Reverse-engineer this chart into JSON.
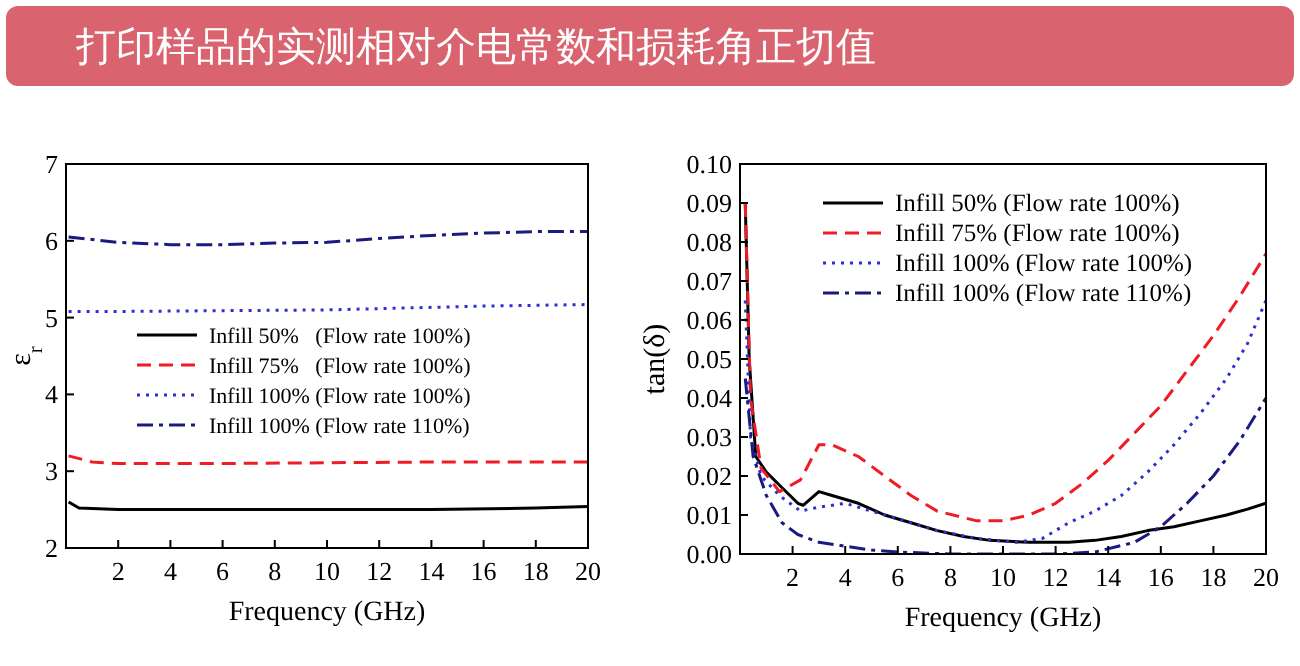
{
  "chart_data": [
    {
      "type": "line",
      "title": "打印样品的实测相对介电常数和损耗角正切值",
      "xlabel": "Frequency (GHz)",
      "ylabel": "ε$_{r}$",
      "xlim": [
        0,
        20
      ],
      "ylim": [
        2,
        7
      ],
      "xticks": [
        2,
        4,
        6,
        8,
        10,
        12,
        14,
        16,
        18,
        20
      ],
      "yticks": [
        2,
        3,
        4,
        5,
        6,
        7
      ],
      "legend": "center",
      "series": [
        {
          "name": "Infill 50%   (Flow rate 100%)",
          "color": "#000000",
          "line_style": "solid",
          "x": [
            0.1,
            0.5,
            2,
            6,
            10,
            14,
            18,
            20
          ],
          "values": [
            2.6,
            2.52,
            2.5,
            2.5,
            2.5,
            2.5,
            2.52,
            2.54
          ]
        },
        {
          "name": "Infill 75%   (Flow rate 100%)",
          "color": "#ee1c25",
          "line_style": "dashed",
          "x": [
            0.1,
            1,
            2,
            6,
            10,
            14,
            20
          ],
          "values": [
            3.2,
            3.12,
            3.1,
            3.1,
            3.11,
            3.12,
            3.12
          ]
        },
        {
          "name": "Infill 100% (Flow rate 100%)",
          "color": "#2f2fd0",
          "line_style": "dotted",
          "x": [
            0.1,
            2,
            6,
            10,
            16,
            20
          ],
          "values": [
            5.08,
            5.08,
            5.09,
            5.1,
            5.15,
            5.17
          ]
        },
        {
          "name": "Infill 100% (Flow rate 110%)",
          "color": "#1a1a80",
          "line_style": "dashdot",
          "x": [
            0.1,
            2,
            4,
            6,
            8,
            10,
            12,
            14,
            16,
            18,
            20
          ],
          "values": [
            6.05,
            5.98,
            5.95,
            5.95,
            5.97,
            5.98,
            6.03,
            6.07,
            6.1,
            6.12,
            6.12
          ]
        }
      ]
    },
    {
      "type": "line",
      "xlabel": "Frequency (GHz)",
      "ylabel": "tan(δ)",
      "xlim": [
        0,
        20
      ],
      "ylim": [
        0,
        0.1
      ],
      "xticks": [
        2,
        4,
        6,
        8,
        10,
        12,
        14,
        16,
        18,
        20
      ],
      "yticks": [
        {
          "value": 0,
          "label": "0.00"
        },
        {
          "value": 0.01,
          "label": "0.01"
        },
        {
          "value": 0.02,
          "label": "0.02"
        },
        {
          "value": 0.03,
          "label": "0.03"
        },
        {
          "value": 0.04,
          "label": "0.04"
        },
        {
          "value": 0.05,
          "label": "0.05"
        },
        {
          "value": 0.06,
          "label": "0.06"
        },
        {
          "value": 0.07,
          "label": "0.07"
        },
        {
          "value": 0.08,
          "label": "0.08"
        },
        {
          "value": 0.09,
          "label": "0.09"
        },
        {
          "value": 0.1,
          "label": "0.10"
        }
      ],
      "legend": "top",
      "series": [
        {
          "name": "Infill 50% (Flow rate 100%)",
          "color": "#000000",
          "line_style": "solid",
          "x": [
            0.2,
            0.35,
            0.6,
            1,
            1.6,
            2.2,
            2.4,
            3,
            3.5,
            4.5,
            5.5,
            6.5,
            7.5,
            8.5,
            9.5,
            11,
            12.5,
            13.5,
            14.5,
            15.5,
            16.5,
            17.5,
            18.5,
            19.3,
            20
          ],
          "values": [
            0.09,
            0.05,
            0.025,
            0.021,
            0.017,
            0.013,
            0.0125,
            0.016,
            0.015,
            0.013,
            0.01,
            0.008,
            0.006,
            0.0045,
            0.0035,
            0.003,
            0.003,
            0.0035,
            0.0045,
            0.006,
            0.007,
            0.0085,
            0.01,
            0.0115,
            0.013
          ]
        },
        {
          "name": "Infill 75% (Flow rate 100%)",
          "color": "#ee1c25",
          "line_style": "dashed",
          "x": [
            0.2,
            0.4,
            0.8,
            1.5,
            2.3,
            3,
            3.5,
            4.5,
            5.5,
            6.5,
            7.5,
            9,
            10,
            11,
            12,
            13,
            14,
            15,
            16,
            17,
            18,
            19,
            20
          ],
          "values": [
            0.09,
            0.04,
            0.022,
            0.016,
            0.019,
            0.028,
            0.028,
            0.025,
            0.02,
            0.015,
            0.011,
            0.0085,
            0.0085,
            0.01,
            0.013,
            0.018,
            0.024,
            0.031,
            0.038,
            0.047,
            0.056,
            0.066,
            0.077
          ]
        },
        {
          "name": "Infill 100% (Flow rate 100%)",
          "color": "#2f2fd0",
          "line_style": "dotted",
          "x": [
            0.2,
            0.4,
            0.8,
            1.5,
            2.3,
            3,
            4,
            5,
            6,
            7.5,
            9,
            10.5,
            11.5,
            12.5,
            13.5,
            14.5,
            15.5,
            16.5,
            17.5,
            18.5,
            19.3,
            20
          ],
          "values": [
            0.065,
            0.03,
            0.02,
            0.015,
            0.011,
            0.012,
            0.013,
            0.011,
            0.009,
            0.006,
            0.004,
            0.003,
            0.004,
            0.008,
            0.011,
            0.015,
            0.021,
            0.028,
            0.036,
            0.045,
            0.054,
            0.065
          ]
        },
        {
          "name": "Infill 100% (Flow rate 110%)",
          "color": "#1a1a80",
          "line_style": "dashdot",
          "x": [
            0.2,
            0.5,
            1,
            1.6,
            2.2,
            3,
            4,
            5,
            6,
            8,
            12,
            13.5,
            15,
            16,
            17,
            18,
            19,
            20
          ],
          "values": [
            0.045,
            0.025,
            0.015,
            0.008,
            0.005,
            0.003,
            0.002,
            0.001,
            0.0005,
            0,
            0,
            0.0005,
            0.003,
            0.007,
            0.013,
            0.02,
            0.029,
            0.04
          ]
        }
      ]
    }
  ]
}
